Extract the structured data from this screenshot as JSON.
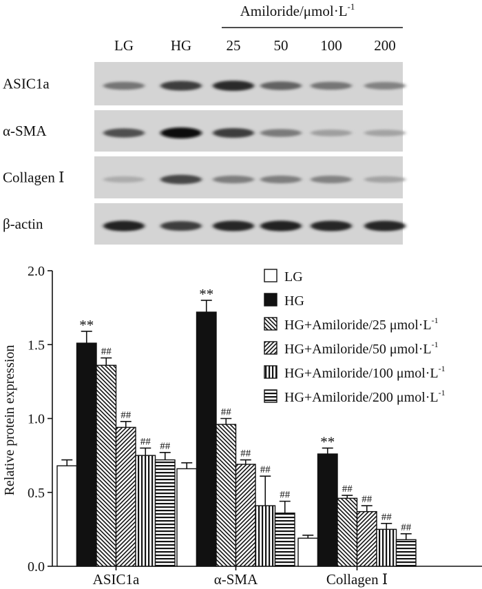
{
  "blot": {
    "group_header": "Amiloride/μmol·L",
    "group_header_sup": "-1",
    "lanes": [
      "LG",
      "HG",
      "25",
      "50",
      "100",
      "200"
    ],
    "rows": [
      {
        "label": "ASIC1a",
        "intensity": [
          0.45,
          0.75,
          0.85,
          0.55,
          0.45,
          0.38
        ]
      },
      {
        "label": "α-SMA",
        "intensity": [
          0.65,
          1.0,
          0.75,
          0.42,
          0.22,
          0.2
        ]
      },
      {
        "label": "Collagen Ⅰ",
        "intensity": [
          0.15,
          0.7,
          0.4,
          0.4,
          0.38,
          0.2
        ]
      },
      {
        "label": "β-actin",
        "intensity": [
          0.9,
          0.75,
          0.88,
          0.9,
          0.88,
          0.88
        ]
      }
    ]
  },
  "chart_data": {
    "type": "bar",
    "ylabel": "Relative protein expression",
    "ylim": [
      0,
      2.0
    ],
    "yticks": [
      "0.0",
      "0.5",
      "1.0",
      "1.5",
      "2.0"
    ],
    "categories": [
      "ASIC1a",
      "α-SMA",
      "Collagen Ⅰ"
    ],
    "legend_position": "top-right",
    "series": [
      {
        "name": "LG",
        "pattern": "white",
        "values": [
          0.68,
          0.66,
          0.19
        ],
        "errors": [
          0.04,
          0.04,
          0.02
        ],
        "marks": [
          "",
          "",
          ""
        ]
      },
      {
        "name": "HG",
        "pattern": "black",
        "values": [
          1.51,
          1.72,
          0.76
        ],
        "errors": [
          0.08,
          0.08,
          0.04
        ],
        "marks": [
          "**",
          "**",
          "**"
        ]
      },
      {
        "name": "HG+Amiloride/25 μmol·L",
        "sup": "-1",
        "pattern": "diag-back",
        "values": [
          1.36,
          0.96,
          0.46
        ],
        "errors": [
          0.05,
          0.04,
          0.02
        ],
        "marks": [
          "##",
          "##",
          "##"
        ]
      },
      {
        "name": "HG+Amiloride/50 μmol·L",
        "sup": "-1",
        "pattern": "diag-fwd",
        "values": [
          0.94,
          0.69,
          0.37
        ],
        "errors": [
          0.04,
          0.03,
          0.04
        ],
        "marks": [
          "##",
          "##",
          "##"
        ]
      },
      {
        "name": "HG+Amiloride/100 μmol·L",
        "sup": "-1",
        "pattern": "vert",
        "values": [
          0.75,
          0.41,
          0.25
        ],
        "errors": [
          0.05,
          0.2,
          0.04
        ],
        "marks": [
          "##",
          "##",
          "##"
        ]
      },
      {
        "name": "HG+Amiloride/200 μmol·L",
        "sup": "-1",
        "pattern": "horiz",
        "values": [
          0.72,
          0.36,
          0.18
        ],
        "errors": [
          0.05,
          0.08,
          0.04
        ],
        "marks": [
          "##",
          "##",
          "##"
        ]
      }
    ]
  }
}
